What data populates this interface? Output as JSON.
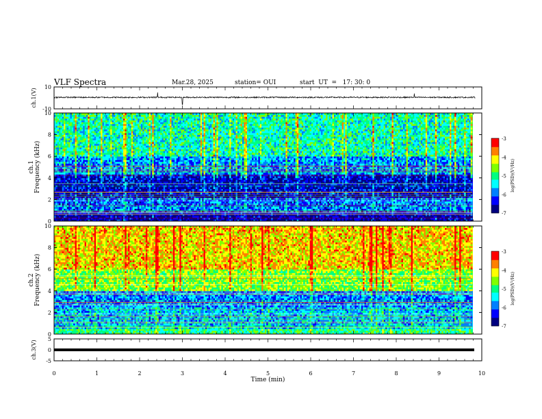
{
  "header": {
    "title": "VLF Spectra",
    "date": "Mar.28, 2025",
    "station": "station= OUI",
    "start": "start  UT  =   17: 30: 0"
  },
  "colors": {
    "cmap": [
      "#000080",
      "#0000ff",
      "#0080ff",
      "#00ffff",
      "#00ff80",
      "#80ff00",
      "#ffff00",
      "#ff8000",
      "#ff0000",
      "#ffffff"
    ]
  },
  "chart_data": [
    {
      "type": "line",
      "title": "",
      "xlabel": "",
      "ylabel": "ch.1(V)",
      "xlim": [
        0,
        10
      ],
      "ylim": [
        -10,
        10
      ],
      "y_ticklabels": [
        "10",
        "-10"
      ],
      "series": [
        {
          "baseline": 0.5,
          "noise_amplitude": 0.6,
          "spikes": [
            {
              "x": 2.42,
              "y": 5
            },
            {
              "x": 3.0,
              "y": -6
            },
            {
              "x": 8.42,
              "y": 4
            }
          ]
        }
      ]
    },
    {
      "type": "heatmap",
      "ylabel_channel": "ch.1",
      "ylabel": "Frequency (kHz)",
      "xlim": [
        0,
        10
      ],
      "ylim": [
        0,
        10
      ],
      "y_ticklabels": [
        "10",
        "8",
        "6",
        "4",
        "2",
        "0"
      ],
      "colorbar": {
        "label": "log(PSD)(V²/Hz)",
        "range": [
          -7,
          -3
        ],
        "ticklabels": [
          "-3",
          "-4",
          "-5",
          "-6",
          "-7"
        ]
      },
      "bands": [
        {
          "f_low": 0,
          "f_high": 0.8,
          "log_psd": -6.7
        },
        {
          "f_low": 0.8,
          "f_high": 2.2,
          "log_psd": -6.0
        },
        {
          "f_low": 2.2,
          "f_high": 4.3,
          "log_psd": -6.5
        },
        {
          "f_low": 4.3,
          "f_high": 6.0,
          "log_psd": -5.8
        },
        {
          "f_low": 6.0,
          "f_high": 10,
          "log_psd": -5.2
        }
      ]
    },
    {
      "type": "heatmap",
      "ylabel_channel": "ch.2",
      "ylabel": "Frequency (kHz)",
      "xlim": [
        0,
        10
      ],
      "ylim": [
        0,
        10
      ],
      "y_ticklabels": [
        "10",
        "8",
        "6",
        "4",
        "2",
        "0"
      ],
      "colorbar": {
        "label": "log(PSD)(V²/Hz)",
        "range": [
          -7,
          -3
        ],
        "ticklabels": [
          "-3",
          "-4",
          "-5",
          "-6",
          "-7"
        ]
      },
      "bands": [
        {
          "f_low": 0,
          "f_high": 0.5,
          "log_psd": -5.0
        },
        {
          "f_low": 0.5,
          "f_high": 2.5,
          "log_psd": -5.6
        },
        {
          "f_low": 2.5,
          "f_high": 4.0,
          "log_psd": -5.9
        },
        {
          "f_low": 4.0,
          "f_high": 6.0,
          "log_psd": -4.6
        },
        {
          "f_low": 6.0,
          "f_high": 10,
          "log_psd": -4.0
        }
      ]
    },
    {
      "type": "line",
      "ylabel": "ch.3(V)",
      "xlabel": "Time (min)",
      "xlim": [
        0,
        10
      ],
      "ylim": [
        -5,
        5
      ],
      "y_ticklabels": [
        "5",
        "0",
        "-5"
      ],
      "x_ticklabels": [
        "0",
        "1",
        "2",
        "3",
        "4",
        "5",
        "6",
        "7",
        "8",
        "9",
        "10"
      ],
      "series": [
        {
          "baseline": 0,
          "noise_amplitude": 0
        }
      ]
    }
  ]
}
